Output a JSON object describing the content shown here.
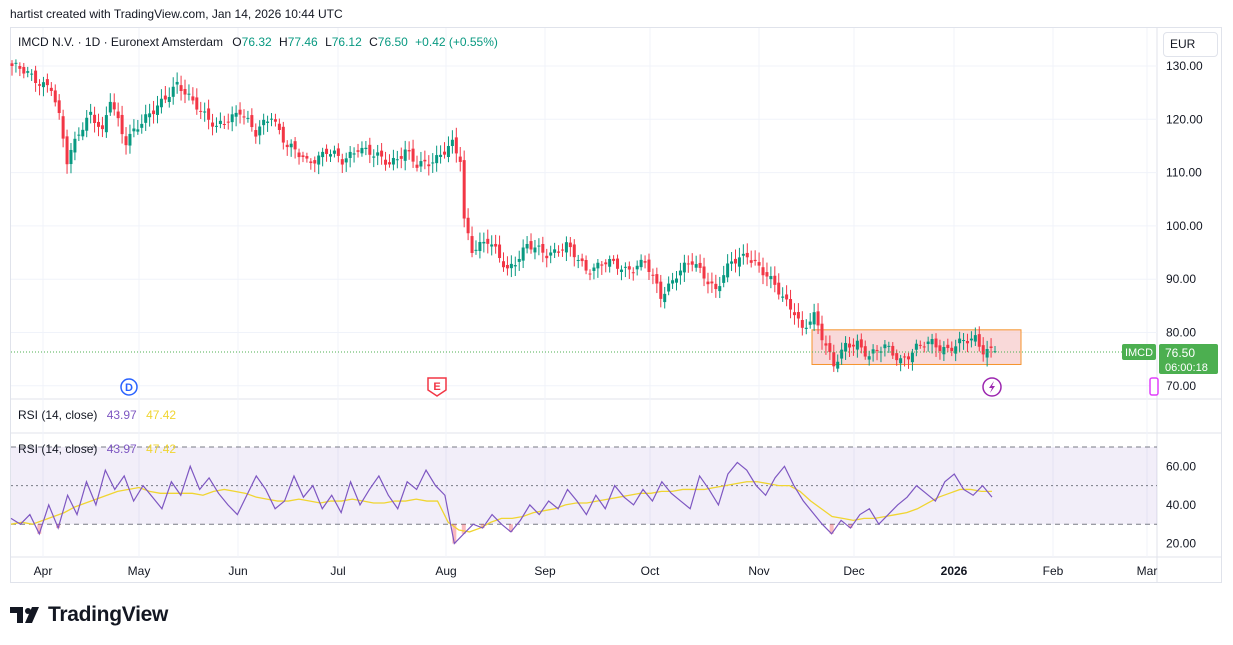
{
  "header": {
    "attribution": "hartist created with TradingView.com, Jan 14, 2026 10:44 UTC"
  },
  "legend": {
    "symbol": "IMCD N.V. · 1D · Euronext Amsterdam",
    "o_label": "O",
    "o_value": "76.32",
    "h_label": "H",
    "h_value": "77.46",
    "l_label": "L",
    "l_value": "76.12",
    "c_label": "C",
    "c_value": "76.50",
    "change": "+0.42 (+0.55%)"
  },
  "currency": "EUR",
  "price_axis": {
    "ticks": [
      "130.00",
      "120.00",
      "110.00",
      "100.00",
      "90.00",
      "80.00",
      "70.00"
    ]
  },
  "last_price": {
    "symbol": "IMCD",
    "price": "76.50",
    "countdown": "06:00:18"
  },
  "markers": {
    "dividend": "D",
    "earnings": "E"
  },
  "rsi_pane": {
    "legend_1": {
      "title": "RSI (14, close)",
      "rsi": "43.97",
      "ma": "47.42"
    },
    "legend_2": {
      "title": "RSI (14, close)",
      "rsi": "43.97",
      "ma": "47.42"
    },
    "ticks": [
      "60.00",
      "40.00",
      "20.00"
    ]
  },
  "time_axis": {
    "labels": [
      "Apr",
      "May",
      "Jun",
      "Jul",
      "Aug",
      "Sep",
      "Oct",
      "Nov",
      "Dec",
      "2026",
      "Feb",
      "Mar"
    ]
  },
  "colors": {
    "up": "#089981",
    "down": "#f23645",
    "rsi": "#7e57c2",
    "rsi_ma": "#f0d531",
    "box_fill": "#f8d0cf",
    "box_stroke": "#f5932c",
    "last_price": "#4caf50"
  },
  "footer": {
    "brand": "TradingView"
  },
  "chart_data": [
    {
      "type": "candlestick",
      "title": "IMCD N.V. · 1D · Euronext Amsterdam",
      "ylim": [
        68,
        132
      ],
      "x_labels": [
        "Apr",
        "May",
        "Jun",
        "Jul",
        "Aug",
        "Sep",
        "Oct",
        "Nov",
        "Dec",
        "2026",
        "Feb",
        "Mar"
      ],
      "anchors": [
        {
          "i": 0,
          "c": 130
        },
        {
          "i": 10,
          "c": 126
        },
        {
          "i": 12,
          "c": 120
        },
        {
          "i": 14,
          "c": 112
        },
        {
          "i": 17,
          "c": 118
        },
        {
          "i": 20,
          "c": 121
        },
        {
          "i": 23,
          "c": 117
        },
        {
          "i": 25,
          "c": 124
        },
        {
          "i": 29,
          "c": 116
        },
        {
          "i": 33,
          "c": 119
        },
        {
          "i": 37,
          "c": 123
        },
        {
          "i": 42,
          "c": 126
        },
        {
          "i": 47,
          "c": 123
        },
        {
          "i": 52,
          "c": 118
        },
        {
          "i": 58,
          "c": 122
        },
        {
          "i": 62,
          "c": 117
        },
        {
          "i": 66,
          "c": 121
        },
        {
          "i": 70,
          "c": 115
        },
        {
          "i": 75,
          "c": 112
        },
        {
          "i": 80,
          "c": 114
        },
        {
          "i": 84,
          "c": 112
        },
        {
          "i": 88,
          "c": 115
        },
        {
          "i": 92,
          "c": 113
        },
        {
          "i": 96,
          "c": 112
        },
        {
          "i": 100,
          "c": 114
        },
        {
          "i": 103,
          "c": 111
        },
        {
          "i": 108,
          "c": 113
        },
        {
          "i": 112,
          "c": 115
        },
        {
          "i": 114,
          "c": 112
        },
        {
          "i": 115,
          "c": 101
        },
        {
          "i": 117,
          "c": 96
        },
        {
          "i": 121,
          "c": 97
        },
        {
          "i": 126,
          "c": 92
        },
        {
          "i": 131,
          "c": 96
        },
        {
          "i": 136,
          "c": 95
        },
        {
          "i": 141,
          "c": 96
        },
        {
          "i": 146,
          "c": 92
        },
        {
          "i": 151,
          "c": 93
        },
        {
          "i": 156,
          "c": 92
        },
        {
          "i": 161,
          "c": 93
        },
        {
          "i": 165,
          "c": 87
        },
        {
          "i": 169,
          "c": 91
        },
        {
          "i": 173,
          "c": 93
        },
        {
          "i": 176,
          "c": 91
        },
        {
          "i": 179,
          "c": 88
        },
        {
          "i": 183,
          "c": 93
        },
        {
          "i": 187,
          "c": 95
        },
        {
          "i": 191,
          "c": 91
        },
        {
          "i": 195,
          "c": 88
        },
        {
          "i": 199,
          "c": 84
        },
        {
          "i": 201,
          "c": 80
        },
        {
          "i": 204,
          "c": 83
        },
        {
          "i": 207,
          "c": 78
        },
        {
          "i": 209,
          "c": 74
        },
        {
          "i": 212,
          "c": 77
        },
        {
          "i": 215,
          "c": 78
        },
        {
          "i": 218,
          "c": 76
        },
        {
          "i": 222,
          "c": 77
        },
        {
          "i": 226,
          "c": 75
        },
        {
          "i": 230,
          "c": 77
        },
        {
          "i": 234,
          "c": 78
        },
        {
          "i": 238,
          "c": 77
        },
        {
          "i": 242,
          "c": 78
        },
        {
          "i": 245,
          "c": 79
        },
        {
          "i": 247,
          "c": 77
        },
        {
          "i": 250,
          "c": 76.5
        }
      ],
      "total_bars": 251,
      "last": {
        "open": 76.32,
        "high": 77.46,
        "low": 76.12,
        "close": 76.5
      },
      "range_box": {
        "y_from": 74,
        "y_to": 80.5
      }
    },
    {
      "type": "line",
      "title": "RSI (14, close)",
      "ylim": [
        15,
        72
      ],
      "reference_lines": [
        70,
        50,
        30
      ],
      "series": [
        {
          "values": [
            33,
            30,
            35,
            25,
            40,
            28,
            45,
            35,
            52,
            40,
            58,
            48,
            55,
            42,
            50,
            44,
            38,
            52,
            45,
            60,
            48,
            54,
            46,
            40,
            35,
            45,
            55,
            48,
            38,
            42,
            55,
            44,
            50,
            38,
            45,
            36,
            52,
            40,
            48,
            55,
            45,
            38,
            52,
            48,
            58,
            50,
            45,
            20,
            25,
            30,
            28,
            35,
            30,
            26,
            32,
            40,
            35,
            42,
            38,
            48,
            42,
            35,
            45,
            38,
            50,
            44,
            40,
            48,
            42,
            52,
            46,
            42,
            38,
            55,
            48,
            40,
            56,
            62,
            58,
            50,
            45,
            54,
            60,
            50,
            42,
            36,
            30,
            25,
            32,
            28,
            35,
            38,
            30,
            35,
            40,
            44,
            50,
            46,
            42,
            52,
            56,
            48,
            45,
            50,
            44
          ]
        },
        {
          "values": [
            30,
            31,
            30,
            32,
            34,
            36,
            39,
            41,
            43,
            45,
            47,
            48,
            49,
            47,
            46,
            46,
            46,
            46,
            45,
            47,
            48,
            47,
            46,
            44,
            43,
            42,
            42,
            43,
            42,
            41,
            42,
            42,
            43,
            42,
            41,
            41,
            42,
            42,
            43,
            42,
            42,
            31,
            27,
            26,
            28,
            31,
            33,
            33,
            34,
            36,
            37,
            38,
            40,
            41,
            41,
            42,
            43,
            44,
            45,
            46,
            46,
            47,
            47,
            48,
            48,
            48,
            49,
            50,
            51,
            52,
            52,
            51,
            50,
            50,
            47,
            42,
            38,
            34,
            33,
            32,
            33,
            33,
            34,
            35,
            36,
            38,
            41,
            44,
            46,
            48,
            48,
            47,
            47
          ]
        }
      ]
    }
  ]
}
